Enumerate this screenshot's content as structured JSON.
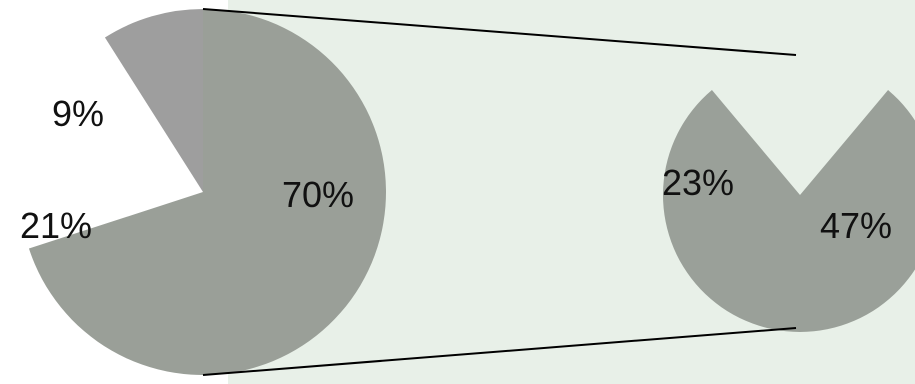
{
  "colors": {
    "panel_bg": "#e8f0e8",
    "main_slice": "#9e9e9e",
    "main_slice_large": "#9a9f98",
    "secondary_slice": "#9aa099",
    "connector": "#000000"
  },
  "chart_data": {
    "type": "pie",
    "variant": "pie-of-pie",
    "main_pie": {
      "slices": [
        {
          "label": "9%",
          "value": 9
        },
        {
          "label": "21%",
          "value": 21
        },
        {
          "label": "70%",
          "value": 70
        }
      ]
    },
    "secondary_pie": {
      "slices": [
        {
          "label": "23%",
          "value": 23
        },
        {
          "label": "47%",
          "value": 47
        }
      ]
    },
    "legend": "none",
    "grid": false
  }
}
